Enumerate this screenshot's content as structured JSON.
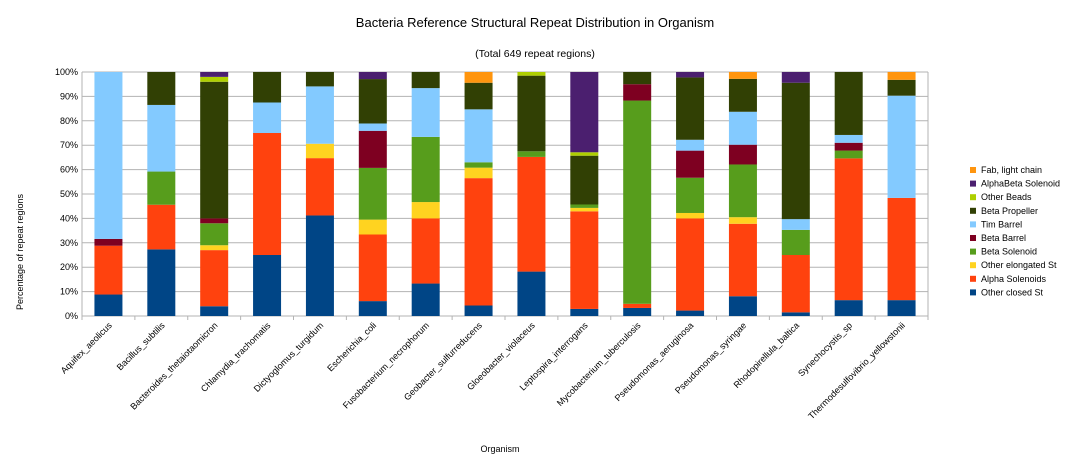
{
  "chart_data": {
    "type": "bar",
    "stacked": true,
    "title": "Bacteria Reference Structural Repeat Distribution in Organism",
    "subtitle": "(Total 649 repeat regions)",
    "xlabel": "Organism",
    "ylabel": "Percentage of repeat regions",
    "ylim": [
      0,
      100
    ],
    "yticks": [
      "0%",
      "10%",
      "20%",
      "30%",
      "40%",
      "50%",
      "60%",
      "70%",
      "80%",
      "90%",
      "100%"
    ],
    "grid": true,
    "legend_position": "right",
    "categories": [
      "Aquifex_aeolicus",
      "Bacillus_subtilis",
      "Bacteroides_thetaiotaomicron",
      "Chlamydia_trachomatis",
      "Dictyoglomus_turgidum",
      "Escherichia_coli",
      "Fusobacterium_necrophorum",
      "Geobacter_sulfurreducens",
      "Gloeobacter_violaceus",
      "Leptospira_interrogans",
      "Mycobacterium_tuberculosis",
      "Pseudomonas_aeruginosa",
      "Pseudomonas_syringae",
      "Rhodopirellula_baltica",
      "Synechocystis_sp",
      "Thermodesulfovibrio_yellowstonii"
    ],
    "series": [
      {
        "name": "Other closed St",
        "color": "#004586",
        "values": [
          8.8,
          27.3,
          4.0,
          25.0,
          41.2,
          6.1,
          13.3,
          4.3,
          18.2,
          2.9,
          3.3,
          2.2,
          8.1,
          1.5,
          6.5,
          6.5
        ]
      },
      {
        "name": "Alpha Solenoids",
        "color": "#ff420e",
        "values": [
          20.0,
          18.3,
          23.0,
          50.0,
          23.5,
          27.3,
          26.7,
          52.2,
          47.0,
          40.0,
          1.7,
          37.4,
          29.7,
          23.5,
          58.1,
          41.9
        ]
      },
      {
        "name": "Other elongated St",
        "color": "#ffd320",
        "values": [
          0,
          0,
          2.0,
          0,
          5.9,
          6.1,
          6.7,
          4.3,
          0,
          1.4,
          0,
          2.2,
          2.7,
          0,
          0,
          0
        ]
      },
      {
        "name": "Beta Solenoid",
        "color": "#579d1c",
        "values": [
          0,
          13.6,
          9.0,
          0,
          0,
          21.2,
          26.7,
          2.2,
          2.3,
          1.4,
          83.3,
          14.3,
          21.6,
          10.3,
          3.2,
          0
        ]
      },
      {
        "name": "Beta Barrel",
        "color": "#7e0021",
        "values": [
          2.8,
          0,
          2.0,
          0,
          0,
          15.2,
          0,
          0,
          0,
          0,
          6.7,
          11.0,
          8.1,
          0,
          3.2,
          0
        ]
      },
      {
        "name": "Tim Barrel",
        "color": "#83caff",
        "values": [
          68.4,
          27.3,
          0,
          12.5,
          23.5,
          3.0,
          20.0,
          21.7,
          0,
          0,
          0,
          4.4,
          13.5,
          4.4,
          3.2,
          41.9
        ]
      },
      {
        "name": "Beta Propeller",
        "color": "#314004",
        "values": [
          0,
          13.5,
          56.0,
          12.5,
          5.9,
          18.2,
          6.6,
          10.9,
          31.0,
          20.0,
          5.0,
          25.3,
          13.5,
          55.9,
          25.8,
          6.5
        ]
      },
      {
        "name": "Other Beads",
        "color": "#aecf00",
        "values": [
          0,
          0,
          2.0,
          0,
          0,
          0,
          0,
          0,
          1.5,
          1.4,
          0,
          0,
          0,
          0,
          0,
          0
        ]
      },
      {
        "name": "AlphaBeta Solenoid",
        "color": "#4b1f6f",
        "values": [
          0,
          0,
          2.0,
          0,
          0,
          2.9,
          0,
          0,
          0,
          32.9,
          0,
          2.2,
          0,
          4.4,
          0,
          0
        ]
      },
      {
        "name": "Fab, light chain",
        "color": "#ff950e",
        "values": [
          0,
          0,
          0,
          0,
          0,
          0,
          0,
          4.4,
          0,
          0,
          0,
          0,
          2.8,
          0,
          0,
          3.2
        ]
      }
    ]
  }
}
